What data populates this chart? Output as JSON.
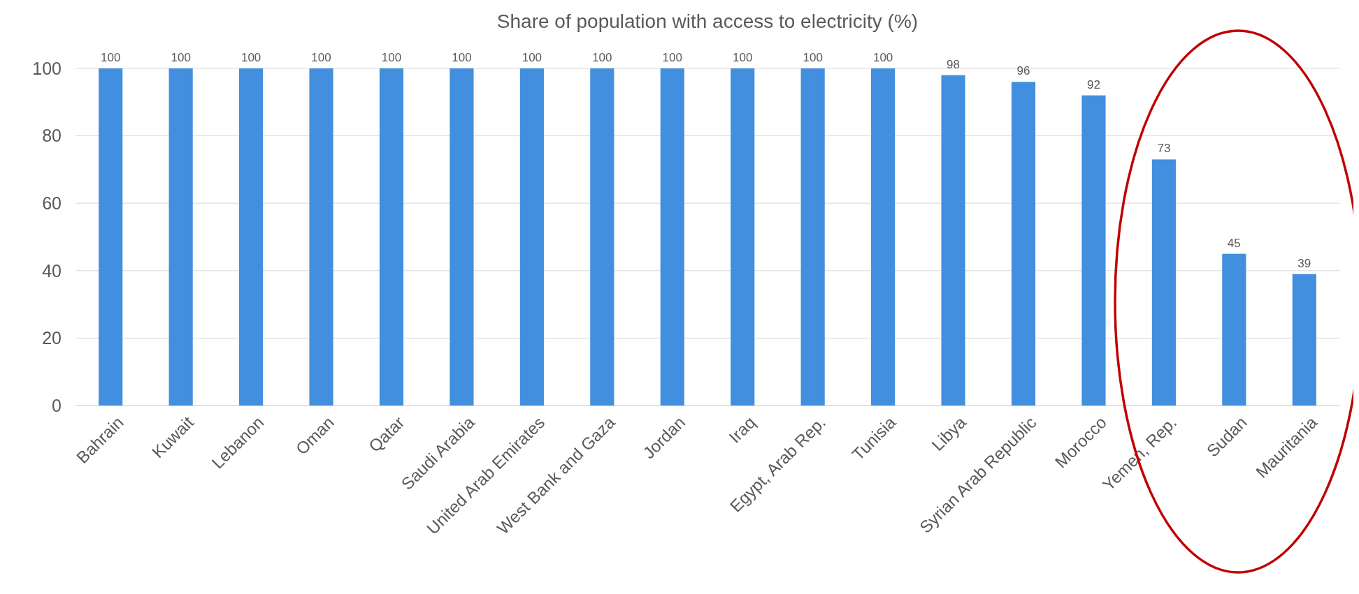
{
  "chart_data": {
    "type": "bar",
    "title": "Share of population with access to electricity (%)",
    "categories": [
      "Bahrain",
      "Kuwait",
      "Lebanon",
      "Oman",
      "Qatar",
      "Saudi Arabia",
      "United Arab Emirates",
      "West Bank and Gaza",
      "Jordan",
      "Iraq",
      "Egypt, Arab Rep.",
      "Tunisia",
      "Libya",
      "Syrian Arab Republic",
      "Morocco",
      "Yemen, Rep.",
      "Sudan",
      "Mauritania"
    ],
    "values": [
      100,
      100,
      100,
      100,
      100,
      100,
      100,
      100,
      100,
      100,
      100,
      100,
      98,
      96,
      92,
      73,
      45,
      39
    ],
    "color": "#418fde",
    "ylim": [
      0,
      100
    ],
    "yticks": [
      0,
      20,
      40,
      60,
      80,
      100
    ],
    "grid": "y",
    "data_labels": true
  }
}
